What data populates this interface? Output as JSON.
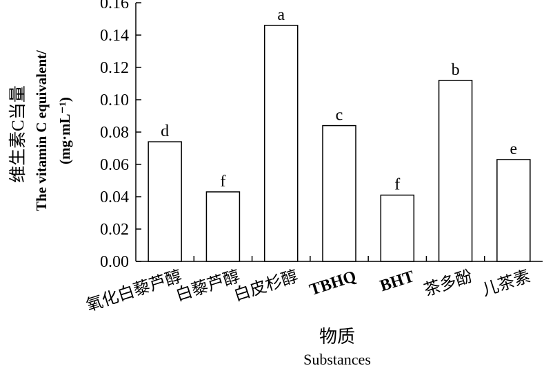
{
  "chart_data": {
    "type": "bar",
    "categories": [
      "氧化白藜芦醇",
      "白藜芦醇",
      "白皮杉醇",
      "TBHQ",
      "BHT",
      "茶多酚",
      "儿茶素"
    ],
    "values": [
      0.074,
      0.043,
      0.146,
      0.084,
      0.041,
      0.112,
      0.063
    ],
    "significance": [
      "d",
      "f",
      "a",
      "c",
      "f",
      "b",
      "e"
    ],
    "ylabel_cn": "维生素C当量",
    "ylabel_en": "The vitamin C equivalent/",
    "ylabel_unit": "(mg·mL⁻¹)",
    "xlabel_cn": "物质",
    "xlabel_en": "Substances",
    "ylim": [
      0,
      0.16
    ],
    "yticks": [
      "0.00",
      "0.02",
      "0.04",
      "0.06",
      "0.08",
      "0.10",
      "0.12",
      "0.14",
      "0.16"
    ],
    "grid": false,
    "legend": "none",
    "bar_fill": "#ffffff",
    "bar_stroke": "#000000"
  }
}
